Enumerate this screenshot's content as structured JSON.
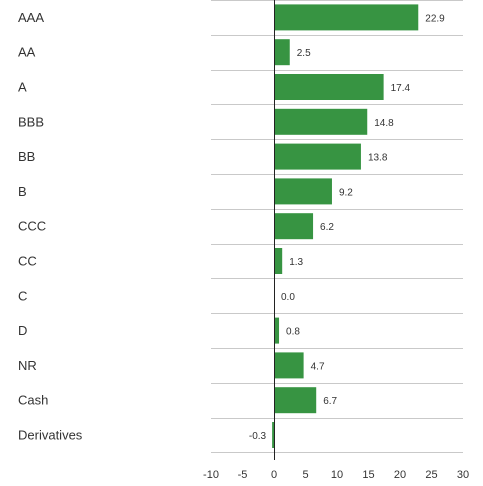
{
  "chart_data": {
    "type": "bar",
    "orientation": "horizontal",
    "categories": [
      "AAA",
      "AA",
      "A",
      "BBB",
      "BB",
      "B",
      "CCC",
      "CC",
      "C",
      "D",
      "NR",
      "Cash",
      "Derivatives"
    ],
    "values": [
      22.9,
      2.5,
      17.4,
      14.8,
      13.8,
      9.2,
      6.2,
      1.3,
      0.0,
      0.8,
      4.7,
      6.7,
      -0.3
    ],
    "value_labels": [
      "22.9",
      "2.5",
      "17.4",
      "14.8",
      "13.8",
      "9.2",
      "6.2",
      "1.3",
      "0.0",
      "0.8",
      "4.7",
      "6.7",
      "-0.3"
    ],
    "xlim": [
      -10,
      30
    ],
    "xticks": [
      -10,
      -5,
      0,
      5,
      10,
      15,
      20,
      25,
      30
    ],
    "xtick_labels": [
      "-10",
      "-5",
      "0",
      "5",
      "10",
      "15",
      "20",
      "25",
      "30"
    ],
    "title": "",
    "xlabel": "",
    "ylabel": "",
    "grid": "horizontal separators between categories",
    "legend": "none"
  },
  "colors": {
    "bar": "#379442",
    "grid": "#c9c9c9",
    "zero_line": "#222222",
    "text": "#333333"
  }
}
